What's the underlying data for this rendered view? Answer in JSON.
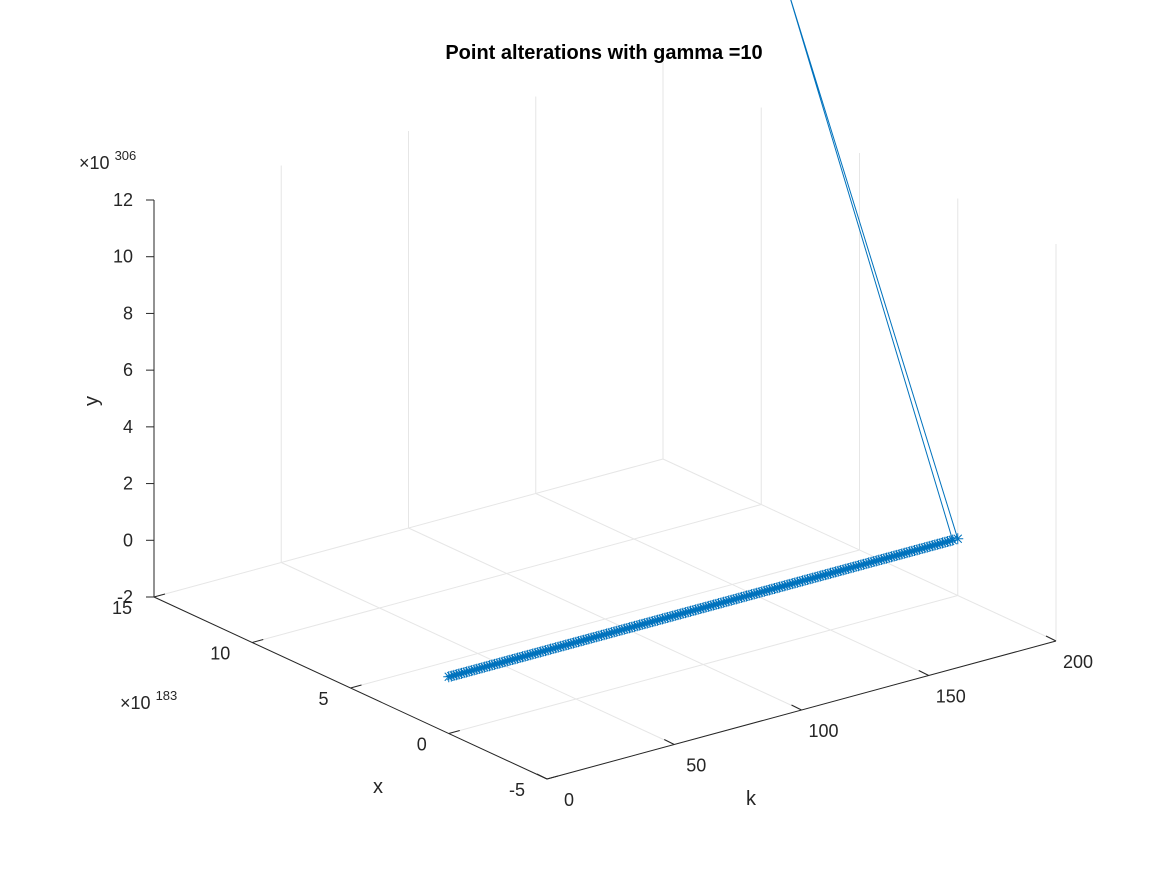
{
  "colors": {
    "series": "#0072BD",
    "grid": "#E6E6E6",
    "axis": "#262626",
    "background": "#FFFFFF"
  },
  "chart_data": {
    "type": "line",
    "projection": "3d",
    "title": "Point alterations with gamma =10",
    "xlabel": "k",
    "ylabel": "x",
    "zlabel": "y",
    "marker": "asterisk",
    "grid": true,
    "x_axis": {
      "name": "k",
      "range": [
        0,
        200
      ],
      "ticks": [
        0,
        50,
        100,
        150,
        200
      ],
      "tick_labels": [
        "0",
        "50",
        "100",
        "150",
        "200"
      ]
    },
    "y_axis": {
      "name": "x",
      "range": [
        -5,
        15
      ],
      "ticks": [
        -5,
        0,
        5,
        10,
        15
      ],
      "tick_labels": [
        "-5",
        "0",
        "5",
        "10",
        "15"
      ],
      "exponent_label": "×10",
      "exponent": "183"
    },
    "z_axis": {
      "name": "y",
      "range": [
        -2,
        12
      ],
      "ticks": [
        -2,
        0,
        2,
        4,
        6,
        8,
        10,
        12
      ],
      "tick_labels": [
        "-2",
        "0",
        "2",
        "4",
        "6",
        "8",
        "10",
        "12"
      ],
      "exponent_label": "×10",
      "exponent": "306"
    },
    "series": [
      {
        "points": [
          {
            "k_start": 0,
            "k_end": 198,
            "x": 0,
            "y": 0,
            "count": 199
          },
          {
            "k": 199,
            "x": 8.6,
            "y": 16.8
          },
          {
            "k": 200,
            "x": 0,
            "y": 0
          }
        ]
      }
    ]
  }
}
